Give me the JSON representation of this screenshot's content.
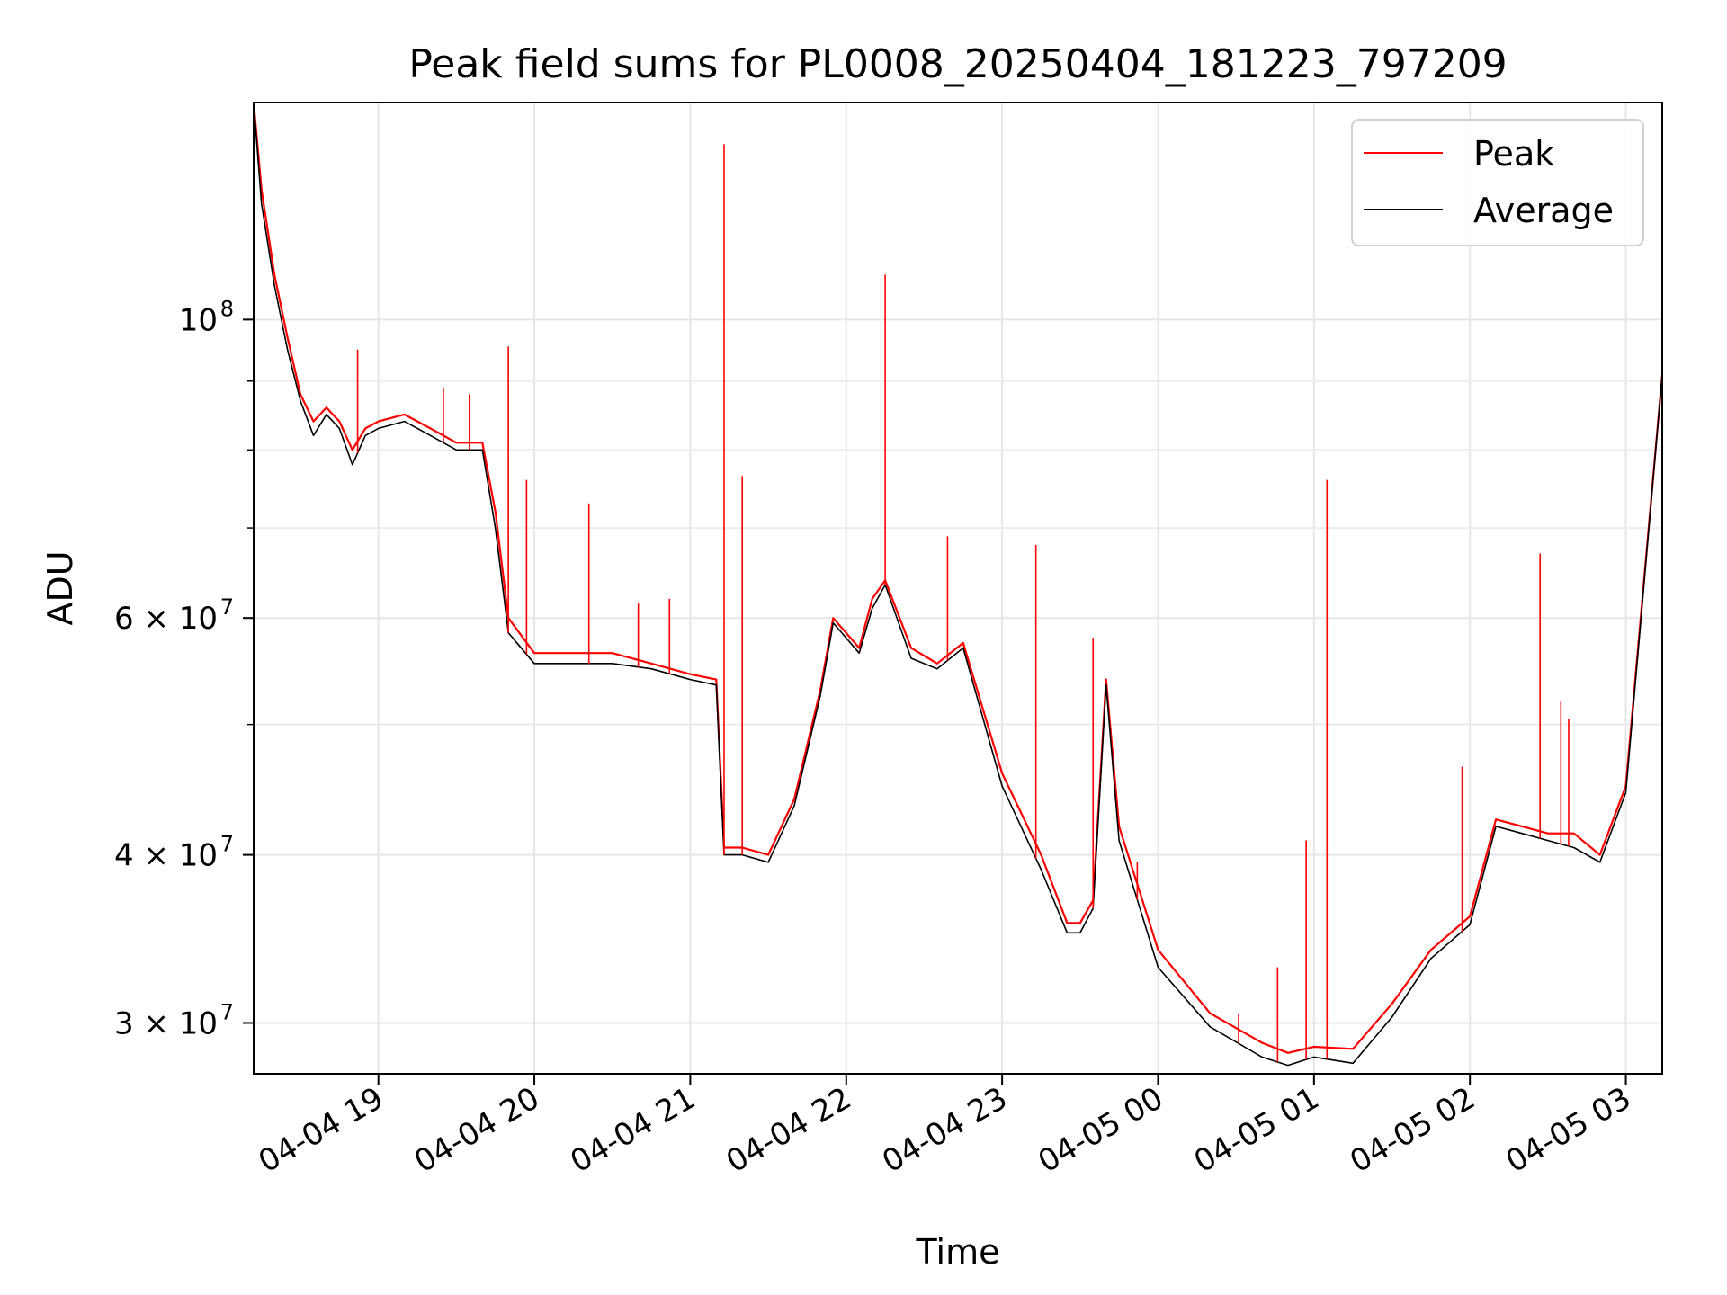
{
  "chart_data": {
    "type": "line",
    "title": "Peak field sums for PL0008_20250404_181223_797209",
    "xlabel": "Time",
    "ylabel": "ADU",
    "yscale": "log",
    "xlim": [
      "2025-04-04 18:12",
      "2025-04-05 03:14"
    ],
    "ylim": [
      27500000,
      145000000
    ],
    "grid": true,
    "legend_position": "top-right",
    "x_ticks": [
      {
        "t": "2025-04-04 19:00",
        "label": "04-04 19"
      },
      {
        "t": "2025-04-04 20:00",
        "label": "04-04 20"
      },
      {
        "t": "2025-04-04 21:00",
        "label": "04-04 21"
      },
      {
        "t": "2025-04-04 22:00",
        "label": "04-04 22"
      },
      {
        "t": "2025-04-04 23:00",
        "label": "04-04 23"
      },
      {
        "t": "2025-04-05 00:00",
        "label": "04-05 00"
      },
      {
        "t": "2025-04-05 01:00",
        "label": "04-05 01"
      },
      {
        "t": "2025-04-05 02:00",
        "label": "04-05 02"
      },
      {
        "t": "2025-04-05 03:00",
        "label": "04-05 03"
      }
    ],
    "y_ticks": [
      {
        "value": 100000000,
        "label": "10^8",
        "base": "10",
        "exp": "8"
      },
      {
        "value": 60000000,
        "label": "6×10^7",
        "base": "6 × 10",
        "exp": "7"
      },
      {
        "value": 40000000,
        "label": "4×10^7",
        "base": "4 × 10",
        "exp": "7"
      },
      {
        "value": 30000000,
        "label": "3×10^7",
        "base": "3 × 10",
        "exp": "7"
      }
    ],
    "y_minor_ticks": [
      50000000,
      70000000,
      80000000,
      90000000
    ],
    "series": [
      {
        "name": "Peak",
        "color": "#ff0000",
        "x": [
          "2025-04-04 18:12",
          "2025-04-04 18:15",
          "2025-04-04 18:20",
          "2025-04-04 18:25",
          "2025-04-04 18:30",
          "2025-04-04 18:35",
          "2025-04-04 18:40",
          "2025-04-04 18:45",
          "2025-04-04 18:50",
          "2025-04-04 18:55",
          "2025-04-04 19:00",
          "2025-04-04 19:10",
          "2025-04-04 19:20",
          "2025-04-04 19:30",
          "2025-04-04 19:40",
          "2025-04-04 19:45",
          "2025-04-04 19:50",
          "2025-04-04 20:00",
          "2025-04-04 20:15",
          "2025-04-04 20:30",
          "2025-04-04 20:45",
          "2025-04-04 21:00",
          "2025-04-04 21:10",
          "2025-04-04 21:13",
          "2025-04-04 21:20",
          "2025-04-04 21:30",
          "2025-04-04 21:40",
          "2025-04-04 21:50",
          "2025-04-04 21:55",
          "2025-04-04 22:05",
          "2025-04-04 22:10",
          "2025-04-04 22:15",
          "2025-04-04 22:25",
          "2025-04-04 22:35",
          "2025-04-04 22:45",
          "2025-04-04 23:00",
          "2025-04-04 23:15",
          "2025-04-04 23:25",
          "2025-04-04 23:30",
          "2025-04-04 23:35",
          "2025-04-04 23:40",
          "2025-04-04 23:45",
          "2025-04-05 00:00",
          "2025-04-05 00:20",
          "2025-04-05 00:40",
          "2025-04-05 00:50",
          "2025-04-05 01:00",
          "2025-04-05 01:15",
          "2025-04-05 01:30",
          "2025-04-05 01:45",
          "2025-04-05 02:00",
          "2025-04-05 02:10",
          "2025-04-05 02:20",
          "2025-04-05 02:30",
          "2025-04-05 02:40",
          "2025-04-05 02:50",
          "2025-04-05 03:00",
          "2025-04-05 03:14"
        ],
        "values": [
          145000000,
          125000000,
          108000000,
          97000000,
          88000000,
          84000000,
          86000000,
          84000000,
          80000000,
          83000000,
          84000000,
          85000000,
          83000000,
          81000000,
          81000000,
          72000000,
          60000000,
          56500000,
          56500000,
          56500000,
          55500000,
          54500000,
          54000000,
          40500000,
          40500000,
          40000000,
          44000000,
          53000000,
          60000000,
          57000000,
          62000000,
          64000000,
          57000000,
          55500000,
          57500000,
          46000000,
          40000000,
          35600000,
          35600000,
          37000000,
          54000000,
          42000000,
          34000000,
          30500000,
          29000000,
          28500000,
          28800000,
          28700000,
          31000000,
          34000000,
          36000000,
          42500000,
          42000000,
          41500000,
          41500000,
          40000000,
          45000000,
          91000000
        ]
      },
      {
        "name": "Average",
        "color": "#000000",
        "x": [
          "2025-04-04 18:12",
          "2025-04-04 18:15",
          "2025-04-04 18:20",
          "2025-04-04 18:25",
          "2025-04-04 18:30",
          "2025-04-04 18:35",
          "2025-04-04 18:40",
          "2025-04-04 18:45",
          "2025-04-04 18:50",
          "2025-04-04 18:55",
          "2025-04-04 19:00",
          "2025-04-04 19:10",
          "2025-04-04 19:20",
          "2025-04-04 19:30",
          "2025-04-04 19:40",
          "2025-04-04 19:45",
          "2025-04-04 19:50",
          "2025-04-04 20:00",
          "2025-04-04 20:15",
          "2025-04-04 20:30",
          "2025-04-04 20:45",
          "2025-04-04 21:00",
          "2025-04-04 21:10",
          "2025-04-04 21:13",
          "2025-04-04 21:20",
          "2025-04-04 21:30",
          "2025-04-04 21:40",
          "2025-04-04 21:50",
          "2025-04-04 21:55",
          "2025-04-04 22:05",
          "2025-04-04 22:10",
          "2025-04-04 22:15",
          "2025-04-04 22:25",
          "2025-04-04 22:35",
          "2025-04-04 22:45",
          "2025-04-04 23:00",
          "2025-04-04 23:15",
          "2025-04-04 23:25",
          "2025-04-04 23:30",
          "2025-04-04 23:35",
          "2025-04-04 23:40",
          "2025-04-04 23:45",
          "2025-04-05 00:00",
          "2025-04-05 00:20",
          "2025-04-05 00:40",
          "2025-04-05 00:50",
          "2025-04-05 01:00",
          "2025-04-05 01:15",
          "2025-04-05 01:30",
          "2025-04-05 01:45",
          "2025-04-05 02:00",
          "2025-04-05 02:10",
          "2025-04-05 02:20",
          "2025-04-05 02:30",
          "2025-04-05 02:40",
          "2025-04-05 02:50",
          "2025-04-05 03:00",
          "2025-04-05 03:14"
        ],
        "values": [
          145000000,
          122000000,
          106000000,
          95000000,
          87000000,
          82000000,
          85000000,
          83000000,
          78000000,
          82000000,
          83000000,
          84000000,
          82000000,
          80000000,
          80000000,
          70000000,
          58500000,
          55500000,
          55500000,
          55500000,
          55000000,
          54000000,
          53500000,
          40000000,
          40000000,
          39500000,
          43500000,
          52500000,
          59500000,
          56500000,
          61000000,
          63500000,
          56000000,
          55000000,
          57000000,
          45000000,
          39000000,
          35000000,
          35000000,
          36500000,
          53500000,
          41000000,
          33000000,
          29800000,
          28300000,
          27900000,
          28300000,
          28000000,
          30300000,
          33500000,
          35500000,
          42000000,
          41500000,
          41000000,
          40500000,
          39500000,
          44500000,
          91000000
        ]
      }
    ],
    "spikes": [
      {
        "t": "2025-04-04 18:52",
        "peak": 95000000
      },
      {
        "t": "2025-04-04 19:25",
        "peak": 89000000
      },
      {
        "t": "2025-04-04 19:35",
        "peak": 88000000
      },
      {
        "t": "2025-04-04 19:50",
        "peak": 95500000
      },
      {
        "t": "2025-04-04 19:57",
        "peak": 76000000
      },
      {
        "t": "2025-04-04 20:21",
        "peak": 73000000
      },
      {
        "t": "2025-04-04 20:40",
        "peak": 61500000
      },
      {
        "t": "2025-04-04 20:52",
        "peak": 62000000
      },
      {
        "t": "2025-04-04 21:13",
        "peak": 135000000
      },
      {
        "t": "2025-04-04 21:20",
        "peak": 76500000
      },
      {
        "t": "2025-04-04 22:15",
        "peak": 108000000
      },
      {
        "t": "2025-04-04 22:39",
        "peak": 69000000
      },
      {
        "t": "2025-04-04 23:13",
        "peak": 68000000
      },
      {
        "t": "2025-04-04 23:35",
        "peak": 58000000
      },
      {
        "t": "2025-04-04 23:52",
        "peak": 39500000
      },
      {
        "t": "2025-04-05 00:31",
        "peak": 30500000
      },
      {
        "t": "2025-04-05 00:46",
        "peak": 33000000
      },
      {
        "t": "2025-04-05 00:57",
        "peak": 41000000
      },
      {
        "t": "2025-04-05 01:05",
        "peak": 76000000
      },
      {
        "t": "2025-04-05 01:57",
        "peak": 46500000
      },
      {
        "t": "2025-04-05 02:27",
        "peak": 67000000
      },
      {
        "t": "2025-04-05 02:35",
        "peak": 52000000
      },
      {
        "t": "2025-04-05 02:38",
        "peak": 50500000
      }
    ]
  }
}
